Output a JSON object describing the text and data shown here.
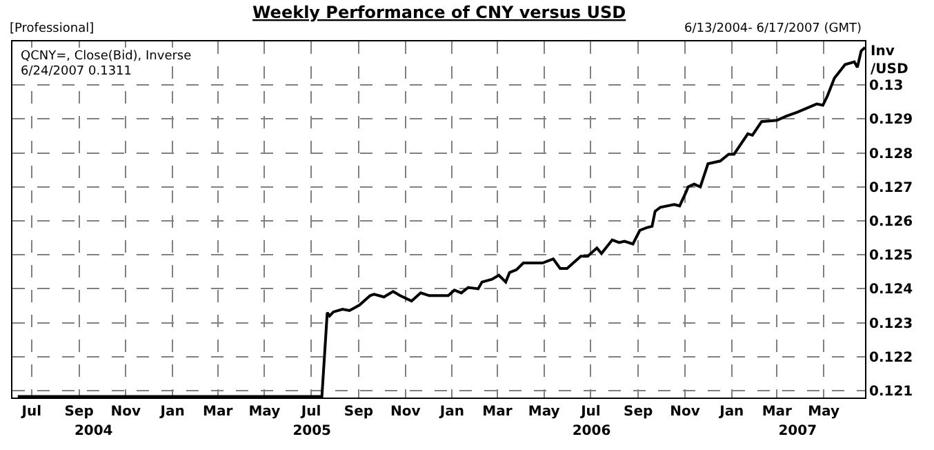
{
  "chart_data": {
    "type": "line",
    "title": "Weekly Performance of CNY versus USD",
    "subtitle": "6/13/2004- 6/17/2007 (GMT)",
    "ylabel": "Inv /USD",
    "annotations": [
      "[Professional]",
      "QCNY=, Close(Bid), Inverse",
      "6/24/2007 0.1311"
    ],
    "x": [
      "2004-06-13",
      "2005-07-15",
      "2005-07-22",
      "2005-07-25",
      "2005-07-30",
      "2005-08-11",
      "2005-08-20",
      "2005-09-02",
      "2005-09-16",
      "2005-09-21",
      "2005-10-04",
      "2005-10-16",
      "2005-10-25",
      "2005-11-09",
      "2005-11-21",
      "2005-12-02",
      "2005-12-27",
      "2006-01-04",
      "2006-01-13",
      "2006-01-22",
      "2006-02-04",
      "2006-02-09",
      "2006-02-22",
      "2006-03-03",
      "2006-03-12",
      "2006-03-17",
      "2006-03-26",
      "2006-04-04",
      "2006-04-16",
      "2006-04-29",
      "2006-05-13",
      "2006-05-22",
      "2006-05-31",
      "2006-06-18",
      "2006-06-27",
      "2006-07-09",
      "2006-07-15",
      "2006-07-29",
      "2006-08-07",
      "2006-08-14",
      "2006-08-25",
      "2006-09-03",
      "2006-09-12",
      "2006-09-19",
      "2006-09-23",
      "2006-09-30",
      "2006-10-18",
      "2006-10-25",
      "2006-11-03",
      "2006-11-05",
      "2006-11-13",
      "2006-11-21",
      "2006-12-01",
      "2006-12-17",
      "2006-12-28",
      "2007-01-04",
      "2007-01-22",
      "2007-01-28",
      "2007-02-09",
      "2007-03-01",
      "2007-03-13",
      "2007-03-28",
      "2007-04-22",
      "2007-04-30",
      "2007-05-06",
      "2007-05-15",
      "2007-05-29",
      "2007-06-10",
      "2007-06-14",
      "2007-06-19",
      "2007-06-24"
    ],
    "series": [
      {
        "color": "#000000",
        "values": [
          0.12083,
          0.12083,
          0.1233,
          0.1232,
          0.12332,
          0.1234,
          0.12336,
          0.12352,
          0.1238,
          0.12384,
          0.12376,
          0.12392,
          0.1238,
          0.12364,
          0.12388,
          0.1238,
          0.1238,
          0.12396,
          0.12388,
          0.12404,
          0.124,
          0.1242,
          0.12428,
          0.1244,
          0.1242,
          0.12448,
          0.12456,
          0.12476,
          0.12476,
          0.12476,
          0.12488,
          0.1246,
          0.1246,
          0.12496,
          0.12496,
          0.1252,
          0.12504,
          0.12544,
          0.12536,
          0.1254,
          0.12532,
          0.12572,
          0.1258,
          0.12584,
          0.12628,
          0.1264,
          0.12648,
          0.12644,
          0.12688,
          0.127,
          0.12708,
          0.127,
          0.12768,
          0.12776,
          0.12796,
          0.12796,
          0.12856,
          0.12852,
          0.12892,
          0.12896,
          0.12908,
          0.1292,
          0.12944,
          0.1294,
          0.12968,
          0.1302,
          0.1306,
          0.13068,
          0.13052,
          0.131,
          0.1311
        ]
      }
    ],
    "xlim": [
      "2004-06-06",
      "2007-06-24"
    ],
    "xticks": [
      {
        "value": "2004-07-01",
        "label": "Jul"
      },
      {
        "value": "2004-09-01",
        "label": "Sep"
      },
      {
        "value": "2004-11-01",
        "label": "Nov"
      },
      {
        "value": "2005-01-01",
        "label": "Jan"
      },
      {
        "value": "2005-03-01",
        "label": "Mar"
      },
      {
        "value": "2005-05-01",
        "label": "May"
      },
      {
        "value": "2005-07-01",
        "label": "Jul"
      },
      {
        "value": "2005-09-01",
        "label": "Sep"
      },
      {
        "value": "2005-11-01",
        "label": "Nov"
      },
      {
        "value": "2006-01-01",
        "label": "Jan"
      },
      {
        "value": "2006-03-01",
        "label": "Mar"
      },
      {
        "value": "2006-05-01",
        "label": "May"
      },
      {
        "value": "2006-07-01",
        "label": "Jul"
      },
      {
        "value": "2006-09-01",
        "label": "Sep"
      },
      {
        "value": "2006-11-01",
        "label": "Nov"
      },
      {
        "value": "2007-01-01",
        "label": "Jan"
      },
      {
        "value": "2007-03-01",
        "label": "Mar"
      },
      {
        "value": "2007-05-01",
        "label": "May"
      }
    ],
    "x2lim": [
      "2004-06-06",
      "2007-06-24"
    ],
    "x2ticks": [
      {
        "value": "2004-09-20",
        "label": "2004"
      },
      {
        "value": "2005-07-02",
        "label": "2005"
      },
      {
        "value": "2006-07-02",
        "label": "2006"
      },
      {
        "value": "2007-03-28",
        "label": "2007"
      }
    ],
    "ylim": [
      0.1208,
      0.13128
    ],
    "yticks": [
      0.121,
      0.122,
      0.123,
      0.124,
      0.125,
      0.126,
      0.127,
      0.128,
      0.129,
      0.13
    ],
    "grid": true,
    "marker": "none",
    "line_style": "solid"
  }
}
